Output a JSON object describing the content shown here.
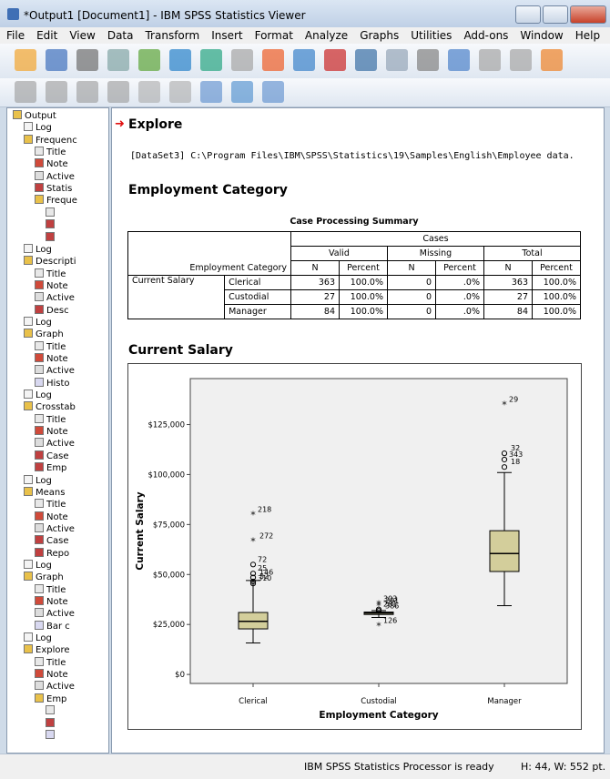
{
  "window": {
    "title": "*Output1 [Document1] - IBM SPSS Statistics Viewer"
  },
  "menu": [
    "File",
    "Edit",
    "View",
    "Data",
    "Transform",
    "Insert",
    "Format",
    "Analyze",
    "Graphs",
    "Utilities",
    "Add-ons",
    "Window",
    "Help"
  ],
  "outline": {
    "label": "Output",
    "icon": "book",
    "children": [
      {
        "label": "Log",
        "icon": "log"
      },
      {
        "label": "Frequenc",
        "icon": "book",
        "children": [
          {
            "label": "Title",
            "icon": "title"
          },
          {
            "label": "Note",
            "icon": "notes"
          },
          {
            "label": "Active",
            "icon": "active"
          },
          {
            "label": "Statis",
            "icon": "table"
          },
          {
            "label": "Freque",
            "icon": "book",
            "children": [
              {
                "icon": "title"
              },
              {
                "icon": "table"
              },
              {
                "icon": "table"
              }
            ]
          }
        ]
      },
      {
        "label": "Log",
        "icon": "log"
      },
      {
        "label": "Descripti",
        "icon": "book",
        "children": [
          {
            "label": "Title",
            "icon": "title"
          },
          {
            "label": "Note",
            "icon": "notes"
          },
          {
            "label": "Active",
            "icon": "active"
          },
          {
            "label": "Desc",
            "icon": "table"
          }
        ]
      },
      {
        "label": "Log",
        "icon": "log"
      },
      {
        "label": "Graph",
        "icon": "book",
        "children": [
          {
            "label": "Title",
            "icon": "title"
          },
          {
            "label": "Note",
            "icon": "notes"
          },
          {
            "label": "Active",
            "icon": "active"
          },
          {
            "label": "Histo",
            "icon": "chart"
          }
        ]
      },
      {
        "label": "Log",
        "icon": "log"
      },
      {
        "label": "Crosstab",
        "icon": "book",
        "children": [
          {
            "label": "Title",
            "icon": "title"
          },
          {
            "label": "Note",
            "icon": "notes"
          },
          {
            "label": "Active",
            "icon": "active"
          },
          {
            "label": "Case",
            "icon": "table"
          },
          {
            "label": "Emp",
            "icon": "table"
          }
        ]
      },
      {
        "label": "Log",
        "icon": "log"
      },
      {
        "label": "Means",
        "icon": "book",
        "children": [
          {
            "label": "Title",
            "icon": "title"
          },
          {
            "label": "Note",
            "icon": "notes"
          },
          {
            "label": "Active",
            "icon": "active"
          },
          {
            "label": "Case",
            "icon": "table"
          },
          {
            "label": "Repo",
            "icon": "table"
          }
        ]
      },
      {
        "label": "Log",
        "icon": "log"
      },
      {
        "label": "Graph",
        "icon": "book",
        "children": [
          {
            "label": "Title",
            "icon": "title"
          },
          {
            "label": "Note",
            "icon": "notes"
          },
          {
            "label": "Active",
            "icon": "active"
          },
          {
            "label": "Bar c",
            "icon": "chart"
          }
        ]
      },
      {
        "label": "Log",
        "icon": "log"
      },
      {
        "label": "Explore",
        "icon": "book",
        "children": [
          {
            "label": "Title",
            "icon": "title"
          },
          {
            "label": "Note",
            "icon": "notes"
          },
          {
            "label": "Active",
            "icon": "active"
          },
          {
            "label": "Emp",
            "icon": "book",
            "children": [
              {
                "icon": "title"
              },
              {
                "icon": "table"
              },
              {
                "icon": "chart"
              }
            ]
          }
        ]
      }
    ]
  },
  "content": {
    "heading": "Explore",
    "dataset": "[DataSet3] C:\\Program Files\\IBM\\SPSS\\Statistics\\19\\Samples\\English\\Employee data.",
    "section1": "Employment Category",
    "case_summary": {
      "title": "Case Processing Summary",
      "cases": "Cases",
      "groups": [
        "Valid",
        "Missing",
        "Total"
      ],
      "row_header": "Employment Category",
      "columns": [
        "N",
        "Percent",
        "N",
        "Percent",
        "N",
        "Percent"
      ],
      "variable": "Current Salary",
      "rows": [
        {
          "label": "Clerical",
          "cells": [
            "363",
            "100.0%",
            "0",
            ".0%",
            "363",
            "100.0%"
          ]
        },
        {
          "label": "Custodial",
          "cells": [
            "27",
            "100.0%",
            "0",
            ".0%",
            "27",
            "100.0%"
          ]
        },
        {
          "label": "Manager",
          "cells": [
            "84",
            "100.0%",
            "0",
            ".0%",
            "84",
            "100.0%"
          ]
        }
      ]
    },
    "section2": "Current Salary"
  },
  "chart_data": {
    "type": "boxplot",
    "x_label": "Employment Category",
    "y_label": "Current Salary",
    "categories": [
      "Clerical",
      "Custodial",
      "Manager"
    ],
    "color": "#d3ce9b",
    "ylim": [
      -4500,
      148000
    ],
    "yticks": [
      {
        "value": 0,
        "label": "$0"
      },
      {
        "value": 25000,
        "label": "$25,000"
      },
      {
        "value": 50000,
        "label": "$50,000"
      },
      {
        "value": 75000,
        "label": "$75,000"
      },
      {
        "value": 100000,
        "label": "$100,000"
      },
      {
        "value": 125000,
        "label": "$125,000"
      }
    ],
    "boxes": [
      {
        "whisker_low": 15750,
        "q1": 22800,
        "median": 26550,
        "q3": 31000,
        "whisker_high": 47000,
        "outliers": [
          {
            "label": "218",
            "value": 80000,
            "marker": "star"
          },
          {
            "label": "272",
            "value": 66750,
            "marker": "star"
          },
          {
            "label": "72",
            "value": 55000,
            "marker": "circle"
          },
          {
            "label": "146",
            "value": 48500,
            "marker": "circle"
          },
          {
            "label": "25",
            "value": 50500,
            "marker": "circle"
          },
          {
            "label": "52",
            "value": 46500,
            "marker": "circle"
          },
          {
            "label": "310",
            "value": 45500,
            "marker": "circle"
          }
        ]
      },
      {
        "whisker_low": 28500,
        "q1": 30000,
        "median": 30750,
        "q3": 31200,
        "whisker_high": 31950,
        "outliers": [
          {
            "label": "281",
            "value": 32500,
            "marker": "circle"
          },
          {
            "label": "291",
            "value": 34500,
            "marker": "star"
          },
          {
            "label": "303",
            "value": 35250,
            "marker": "star"
          },
          {
            "label": "386",
            "value": 31800,
            "marker": "circle"
          },
          {
            "label": "126",
            "value": 24300,
            "marker": "star"
          }
        ]
      },
      {
        "whisker_low": 34400,
        "q1": 51500,
        "median": 60500,
        "q3": 71900,
        "whisker_high": 101000,
        "outliers": [
          {
            "label": "29",
            "value": 135000,
            "marker": "star"
          },
          {
            "label": "32",
            "value": 110600,
            "marker": "circle"
          },
          {
            "label": "343",
            "value": 107500,
            "marker": "circle"
          },
          {
            "label": "18",
            "value": 103750,
            "marker": "circle"
          }
        ]
      }
    ]
  },
  "status": {
    "message": "IBM SPSS Statistics Processor is ready",
    "size": "H: 44, W: 552 pt."
  }
}
